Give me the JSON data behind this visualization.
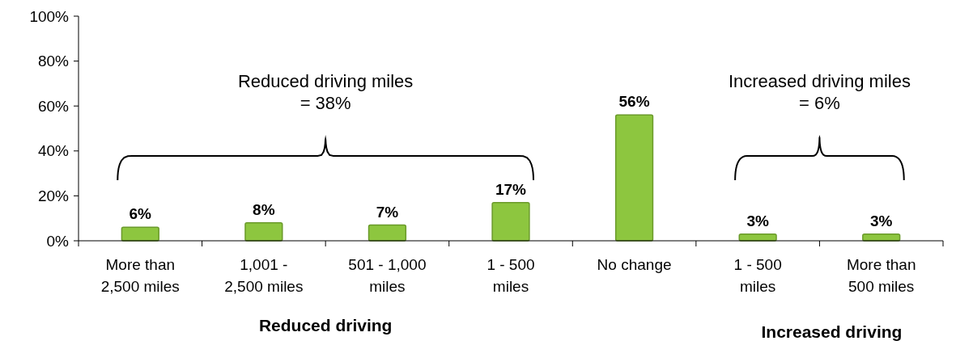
{
  "chart_data": {
    "type": "bar",
    "categories": [
      "More than\n2,500 miles",
      "1,001 -\n2,500 miles",
      "501 - 1,000\nmiles",
      "1 - 500\nmiles",
      "No change",
      "1 - 500\nmiles",
      "More than\n500 miles"
    ],
    "values": [
      6,
      8,
      7,
      17,
      56,
      3,
      3
    ],
    "value_labels": [
      "6%",
      "8%",
      "7%",
      "17%",
      "56%",
      "3%",
      "3%"
    ],
    "color": "#8dc63f",
    "ylim": [
      0,
      100
    ],
    "yticks": [
      {
        "value": 0,
        "label": "0%"
      },
      {
        "value": 20,
        "label": "20%"
      },
      {
        "value": 40,
        "label": "40%"
      },
      {
        "value": 60,
        "label": "60%"
      },
      {
        "value": 80,
        "label": "80%"
      },
      {
        "value": 100,
        "label": "100%"
      }
    ],
    "grid": false,
    "annotations": [
      "Reduced driving miles\n= 38%",
      "Increased driving miles\n= 6%",
      "Reduced driving",
      "Increased driving"
    ]
  }
}
